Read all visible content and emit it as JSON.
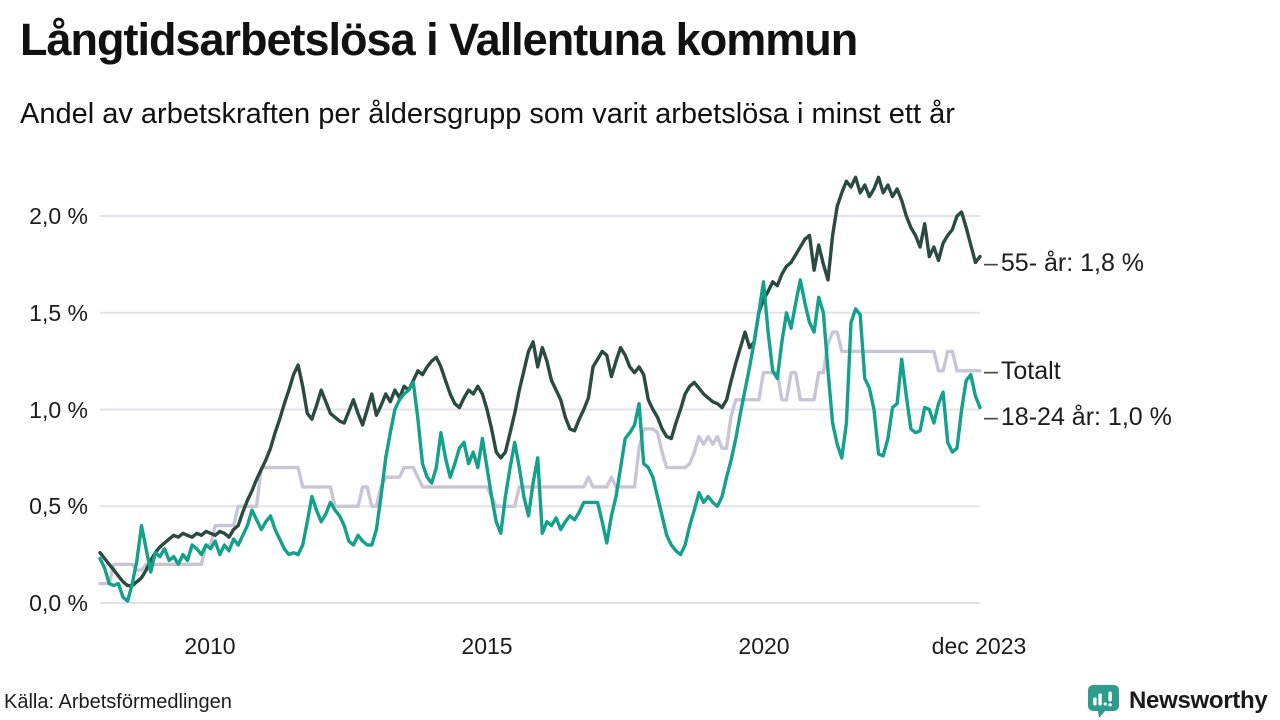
{
  "title": "Långtidsarbetslösa i Vallentuna kommun",
  "subtitle": "Andel av arbetskraften per åldersgrupp som varit arbetslösa i minst ett år",
  "source": "Källa: Arbetsförmedlingen",
  "branding": {
    "name": "Newsworthy",
    "color": "#2E9C8D",
    "icon": "newsworthy-bars-speech-bubble"
  },
  "colors": {
    "series_55": "#2B4A41",
    "series_totalt": "#C8C5D4",
    "series_1824": "#14A18B",
    "gridline": "#E2E2E8",
    "text": "#1A1A1A",
    "label_dash": "#4A4A4A"
  },
  "chart_data": {
    "type": "line",
    "title": "Långtidsarbetslösa i Vallentuna kommun",
    "xlabel": "",
    "ylabel": "",
    "x_start": "2008-01",
    "x_end": "2023-12",
    "x_interval": "monthly",
    "x_tick_labels": [
      "2010",
      "2015",
      "2020",
      "dec 2023"
    ],
    "x_tick_month_index": [
      24,
      84,
      144,
      191
    ],
    "y_tick_labels": [
      "0,0 %",
      "0,5 %",
      "1,0 %",
      "1,5 %",
      "2,0 %"
    ],
    "y_ticks": [
      0,
      0.5,
      1.0,
      1.5,
      2.0
    ],
    "ylim": [
      0,
      2.25
    ],
    "grid": "horizontal",
    "legend_position": "right-edge-labels",
    "series": [
      {
        "name": "Totalt",
        "end_label": "Totalt",
        "end_value": 1.2,
        "color": "#C8C5D4",
        "values": [
          0.1,
          0.1,
          0.1,
          0.2,
          0.2,
          0.2,
          0.2,
          0.2,
          0.17,
          0.17,
          0.2,
          0.2,
          0.2,
          0.2,
          0.2,
          0.2,
          0.2,
          0.2,
          0.2,
          0.2,
          0.2,
          0.2,
          0.2,
          0.3,
          0.3,
          0.4,
          0.4,
          0.4,
          0.4,
          0.4,
          0.5,
          0.5,
          0.5,
          0.5,
          0.5,
          0.7,
          0.7,
          0.7,
          0.7,
          0.7,
          0.7,
          0.7,
          0.7,
          0.7,
          0.6,
          0.6,
          0.6,
          0.6,
          0.6,
          0.6,
          0.6,
          0.5,
          0.5,
          0.5,
          0.5,
          0.5,
          0.5,
          0.6,
          0.6,
          0.5,
          0.5,
          0.6,
          0.65,
          0.65,
          0.65,
          0.65,
          0.7,
          0.7,
          0.7,
          0.65,
          0.6,
          0.6,
          0.6,
          0.6,
          0.6,
          0.6,
          0.6,
          0.6,
          0.6,
          0.6,
          0.6,
          0.6,
          0.6,
          0.6,
          0.6,
          0.55,
          0.5,
          0.5,
          0.5,
          0.5,
          0.5,
          0.6,
          0.6,
          0.6,
          0.6,
          0.6,
          0.6,
          0.6,
          0.6,
          0.6,
          0.6,
          0.6,
          0.6,
          0.6,
          0.6,
          0.6,
          0.65,
          0.6,
          0.6,
          0.6,
          0.6,
          0.65,
          0.6,
          0.6,
          0.6,
          0.6,
          0.6,
          0.8,
          0.9,
          0.9,
          0.9,
          0.88,
          0.78,
          0.7,
          0.7,
          0.7,
          0.7,
          0.7,
          0.72,
          0.78,
          0.86,
          0.82,
          0.86,
          0.82,
          0.86,
          0.8,
          0.8,
          0.97,
          1.05,
          1.05,
          1.05,
          1.05,
          1.05,
          1.05,
          1.19,
          1.19,
          1.19,
          1.19,
          1.05,
          1.05,
          1.19,
          1.19,
          1.05,
          1.05,
          1.05,
          1.05,
          1.19,
          1.19,
          1.34,
          1.4,
          1.4,
          1.3,
          1.3,
          1.3,
          1.3,
          1.3,
          1.3,
          1.3,
          1.3,
          1.3,
          1.3,
          1.3,
          1.3,
          1.3,
          1.3,
          1.3,
          1.3,
          1.3,
          1.3,
          1.3,
          1.3,
          1.3,
          1.2,
          1.2,
          1.3,
          1.3,
          1.2,
          1.2,
          1.2,
          1.2,
          1.2,
          1.2
        ]
      },
      {
        "name": "55- år",
        "end_label": "55- år: 1,8 %",
        "end_value": 1.8,
        "color": "#2B4A41",
        "values": [
          0.26,
          0.23,
          0.2,
          0.17,
          0.14,
          0.11,
          0.09,
          0.09,
          0.11,
          0.13,
          0.17,
          0.22,
          0.26,
          0.29,
          0.31,
          0.33,
          0.35,
          0.34,
          0.36,
          0.35,
          0.34,
          0.36,
          0.35,
          0.37,
          0.36,
          0.35,
          0.37,
          0.36,
          0.34,
          0.38,
          0.4,
          0.47,
          0.53,
          0.58,
          0.64,
          0.69,
          0.74,
          0.8,
          0.88,
          0.95,
          1.03,
          1.1,
          1.18,
          1.23,
          1.12,
          0.98,
          0.95,
          1.02,
          1.1,
          1.04,
          0.98,
          0.96,
          0.94,
          0.93,
          0.99,
          1.05,
          0.98,
          0.92,
          1.0,
          1.08,
          0.97,
          1.02,
          1.08,
          1.04,
          1.1,
          1.06,
          1.12,
          1.1,
          1.15,
          1.2,
          1.18,
          1.22,
          1.25,
          1.27,
          1.22,
          1.15,
          1.08,
          1.03,
          1.01,
          1.06,
          1.1,
          1.08,
          1.12,
          1.08,
          1.0,
          0.9,
          0.78,
          0.75,
          0.78,
          0.88,
          0.98,
          1.1,
          1.2,
          1.3,
          1.35,
          1.22,
          1.32,
          1.25,
          1.15,
          1.1,
          1.05,
          0.96,
          0.9,
          0.89,
          0.95,
          1.0,
          1.06,
          1.22,
          1.26,
          1.3,
          1.28,
          1.17,
          1.25,
          1.32,
          1.28,
          1.22,
          1.19,
          1.22,
          1.18,
          1.05,
          1.0,
          0.96,
          0.9,
          0.86,
          0.85,
          0.93,
          1.0,
          1.08,
          1.12,
          1.14,
          1.11,
          1.08,
          1.06,
          1.04,
          1.03,
          1.01,
          1.05,
          1.15,
          1.24,
          1.32,
          1.4,
          1.32,
          1.35,
          1.5,
          1.57,
          1.61,
          1.66,
          1.64,
          1.7,
          1.74,
          1.76,
          1.8,
          1.84,
          1.88,
          1.9,
          1.72,
          1.85,
          1.75,
          1.67,
          1.9,
          2.05,
          2.12,
          2.18,
          2.15,
          2.2,
          2.12,
          2.16,
          2.1,
          2.14,
          2.2,
          2.12,
          2.16,
          2.1,
          2.14,
          2.08,
          2.0,
          1.94,
          1.9,
          1.84,
          1.96,
          1.79,
          1.84,
          1.77,
          1.86,
          1.9,
          1.93,
          2.0,
          2.02,
          1.94,
          1.85,
          1.76,
          1.79
        ]
      },
      {
        "name": "18-24 år",
        "end_label": "18-24 år: 1,0 %",
        "end_value": 1.0,
        "color": "#14A18B",
        "values": [
          0.23,
          0.18,
          0.1,
          0.09,
          0.1,
          0.03,
          0.01,
          0.1,
          0.22,
          0.4,
          0.28,
          0.16,
          0.26,
          0.24,
          0.28,
          0.22,
          0.24,
          0.2,
          0.25,
          0.22,
          0.3,
          0.28,
          0.25,
          0.3,
          0.28,
          0.32,
          0.25,
          0.3,
          0.27,
          0.33,
          0.3,
          0.35,
          0.4,
          0.48,
          0.43,
          0.38,
          0.42,
          0.45,
          0.38,
          0.33,
          0.28,
          0.25,
          0.26,
          0.25,
          0.3,
          0.42,
          0.55,
          0.48,
          0.42,
          0.46,
          0.52,
          0.48,
          0.45,
          0.4,
          0.32,
          0.3,
          0.35,
          0.32,
          0.3,
          0.3,
          0.38,
          0.55,
          0.75,
          0.88,
          1.0,
          1.05,
          1.08,
          1.1,
          1.14,
          0.95,
          0.72,
          0.65,
          0.62,
          0.7,
          0.88,
          0.75,
          0.65,
          0.72,
          0.8,
          0.83,
          0.72,
          0.78,
          0.7,
          0.85,
          0.7,
          0.55,
          0.42,
          0.36,
          0.55,
          0.7,
          0.83,
          0.7,
          0.55,
          0.45,
          0.62,
          0.75,
          0.36,
          0.42,
          0.4,
          0.44,
          0.38,
          0.42,
          0.45,
          0.43,
          0.47,
          0.52,
          0.52,
          0.52,
          0.52,
          0.42,
          0.31,
          0.45,
          0.55,
          0.7,
          0.85,
          0.88,
          0.92,
          1.03,
          0.72,
          0.7,
          0.65,
          0.55,
          0.45,
          0.35,
          0.3,
          0.27,
          0.25,
          0.3,
          0.4,
          0.48,
          0.57,
          0.52,
          0.55,
          0.52,
          0.5,
          0.55,
          0.65,
          0.74,
          0.85,
          0.98,
          1.1,
          1.22,
          1.35,
          1.5,
          1.66,
          1.4,
          1.2,
          1.16,
          1.35,
          1.5,
          1.42,
          1.55,
          1.67,
          1.55,
          1.45,
          1.4,
          1.58,
          1.5,
          1.2,
          0.93,
          0.82,
          0.75,
          0.93,
          1.45,
          1.52,
          1.49,
          1.16,
          1.11,
          1.0,
          0.77,
          0.76,
          0.85,
          1.01,
          1.03,
          1.26,
          1.07,
          0.9,
          0.88,
          0.89,
          1.01,
          1.0,
          0.93,
          1.03,
          1.09,
          0.83,
          0.78,
          0.8,
          1.0,
          1.15,
          1.18,
          1.07,
          1.01
        ]
      }
    ]
  }
}
